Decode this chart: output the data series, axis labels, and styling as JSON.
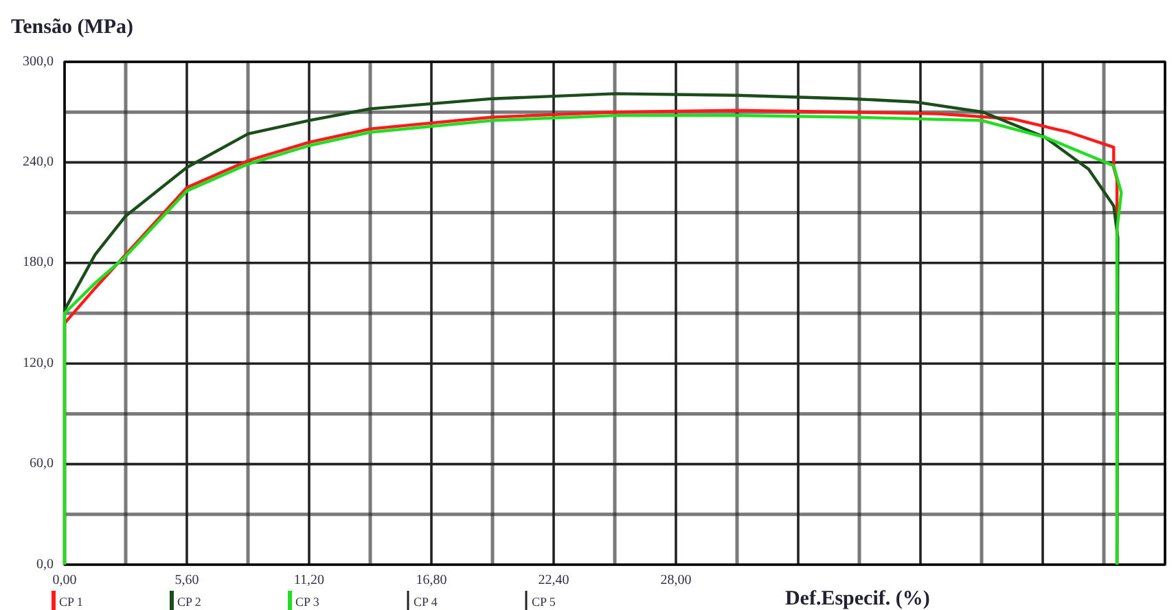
{
  "chart_data": {
    "type": "line",
    "ylabel": "Tensão (MPa)",
    "xlabel": "Def.Especif. (%)",
    "xlim": [
      0,
      50.4
    ],
    "ylim": [
      0,
      300
    ],
    "xticks": [
      {
        "value": 0,
        "label": "0,00"
      },
      {
        "value": 2.8,
        "label": null
      },
      {
        "value": 5.6,
        "label": "5,60"
      },
      {
        "value": 8.4,
        "label": null
      },
      {
        "value": 11.2,
        "label": "11,20"
      },
      {
        "value": 14,
        "label": null
      },
      {
        "value": 16.8,
        "label": "16,80"
      },
      {
        "value": 19.6,
        "label": null
      },
      {
        "value": 22.4,
        "label": "22,40"
      },
      {
        "value": 25.2,
        "label": null
      },
      {
        "value": 28,
        "label": "28,00"
      },
      {
        "value": 30.8,
        "label": null
      },
      {
        "value": 33.6,
        "label": null
      },
      {
        "value": 36.4,
        "label": null
      },
      {
        "value": 39.2,
        "label": null
      },
      {
        "value": 42,
        "label": null
      },
      {
        "value": 44.8,
        "label": null
      },
      {
        "value": 47.6,
        "label": null
      },
      {
        "value": 50.4,
        "label": null
      }
    ],
    "yticks": [
      {
        "value": 0,
        "label": "0,0"
      },
      {
        "value": 30,
        "label": null
      },
      {
        "value": 60,
        "label": "60,0"
      },
      {
        "value": 90,
        "label": null
      },
      {
        "value": 120,
        "label": "120,0"
      },
      {
        "value": 150,
        "label": null
      },
      {
        "value": 180,
        "label": "180,0"
      },
      {
        "value": 210,
        "label": null
      },
      {
        "value": 240,
        "label": "240,0"
      },
      {
        "value": 270,
        "label": null
      },
      {
        "value": 300,
        "label": "300,0"
      }
    ],
    "grid": true,
    "legend": "bottom",
    "line_style": "solid",
    "annotations": [
      "CP 4",
      "CP 5"
    ],
    "series": [
      {
        "name": "CP 1",
        "color": "#ff1a1a",
        "x": [
          0,
          0,
          1.4,
          2.8,
          5.6,
          8.4,
          11.2,
          14,
          19.6,
          25.2,
          30.8,
          36,
          40,
          43.4,
          46,
          48.05,
          48.05,
          48.2,
          48.2
        ],
        "values": [
          0,
          144,
          165,
          185,
          225,
          241,
          252,
          260,
          267,
          270,
          271,
          270,
          269,
          266,
          258,
          249,
          237,
          230,
          0
        ]
      },
      {
        "name": "CP 2",
        "color": "#1a4d1a",
        "x": [
          0,
          0,
          1.4,
          2.8,
          5.6,
          8.4,
          11.2,
          14,
          19.6,
          25.2,
          30.8,
          36,
          39,
          42.06,
          44.9,
          46.9,
          48.05,
          48.24,
          48.2
        ],
        "values": [
          0,
          152,
          185,
          208,
          237,
          257,
          265,
          272,
          278,
          281,
          280,
          278,
          276,
          270,
          255,
          236,
          214,
          195,
          0
        ]
      },
      {
        "name": "CP 3",
        "color": "#22dd22",
        "x": [
          0,
          0,
          0,
          1.4,
          2.8,
          5.6,
          8.4,
          11.2,
          14,
          19.6,
          25.2,
          30.8,
          36,
          42,
          44.9,
          48.05,
          48.4,
          48.2,
          48.2
        ],
        "values": [
          0,
          73,
          150,
          168,
          184,
          223,
          239,
          250,
          258,
          265,
          268,
          268,
          267,
          265,
          255,
          238,
          222,
          200,
          0
        ]
      }
    ]
  }
}
